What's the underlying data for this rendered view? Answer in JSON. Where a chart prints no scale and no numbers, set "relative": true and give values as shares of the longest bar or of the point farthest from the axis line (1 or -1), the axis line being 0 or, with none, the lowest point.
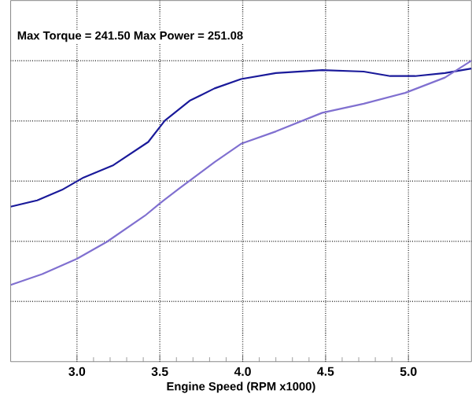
{
  "chart_data": {
    "type": "line",
    "relative": true,
    "xlabel": "Engine Speed (RPM x1000)",
    "annotations": [
      "Max Torque = 241.50 Max Power = 251.08"
    ],
    "xlim": [
      2.6,
      5.38
    ],
    "xticks": [
      {
        "value": 3,
        "label": "3.0"
      },
      {
        "value": 3.5,
        "label": "3.5"
      },
      {
        "value": 4,
        "label": "4.0"
      },
      {
        "value": 4.5,
        "label": "4.5"
      },
      {
        "value": 5,
        "label": "5.0"
      }
    ],
    "grid": true,
    "marker": "none",
    "line_style": "solid",
    "series": [
      {
        "color": "#1a1a9a",
        "x": [
          2.6,
          2.76,
          2.91,
          3.04,
          3.22,
          3.43,
          3.53,
          3.68,
          3.83,
          3.99,
          4.2,
          4.48,
          4.73,
          4.89,
          5.04,
          5.22,
          5.38
        ],
        "values": [
          0.515,
          0.536,
          0.571,
          0.612,
          0.653,
          0.73,
          0.801,
          0.867,
          0.908,
          0.939,
          0.959,
          0.969,
          0.964,
          0.949,
          0.949,
          0.959,
          0.974
        ]
      },
      {
        "color": "#8070d0",
        "x": [
          2.6,
          2.79,
          3.0,
          3.18,
          3.41,
          3.5,
          3.62,
          3.83,
          3.99,
          4.2,
          4.48,
          4.73,
          4.98,
          5.22,
          5.38
        ],
        "values": [
          0.255,
          0.291,
          0.342,
          0.398,
          0.485,
          0.526,
          0.577,
          0.663,
          0.724,
          0.765,
          0.827,
          0.857,
          0.893,
          0.944,
          1.0
        ]
      }
    ]
  }
}
